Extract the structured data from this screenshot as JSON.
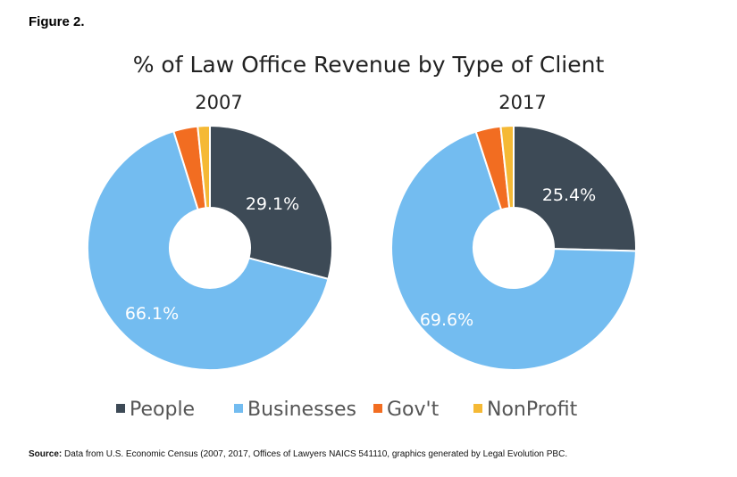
{
  "figure_label": "Figure 2.",
  "source_label": "Source:",
  "source_text": "Data from U.S. Economic Census (2007, 2017, Offices of Lawyers NAICS 541110, graphics generated by Legal Evolution PBC.",
  "chart_data": {
    "type": "pie",
    "variant": "donut",
    "title": "% of Law Office Revenue by Type of Client",
    "categories": [
      "People",
      "Businesses",
      "Gov't",
      "NonProfit"
    ],
    "colors": [
      "#3d4a56",
      "#73bcf0",
      "#f26d21",
      "#f5b935"
    ],
    "legend_position": "bottom",
    "charts": [
      {
        "title": "2007",
        "values": [
          29.1,
          66.1,
          3.2,
          1.6
        ],
        "labels": [
          "29.1%",
          "66.1%",
          "",
          ""
        ]
      },
      {
        "title": "2017",
        "values": [
          25.4,
          69.6,
          3.3,
          1.7
        ],
        "labels": [
          "25.4%",
          "69.6%",
          "",
          ""
        ]
      }
    ]
  }
}
